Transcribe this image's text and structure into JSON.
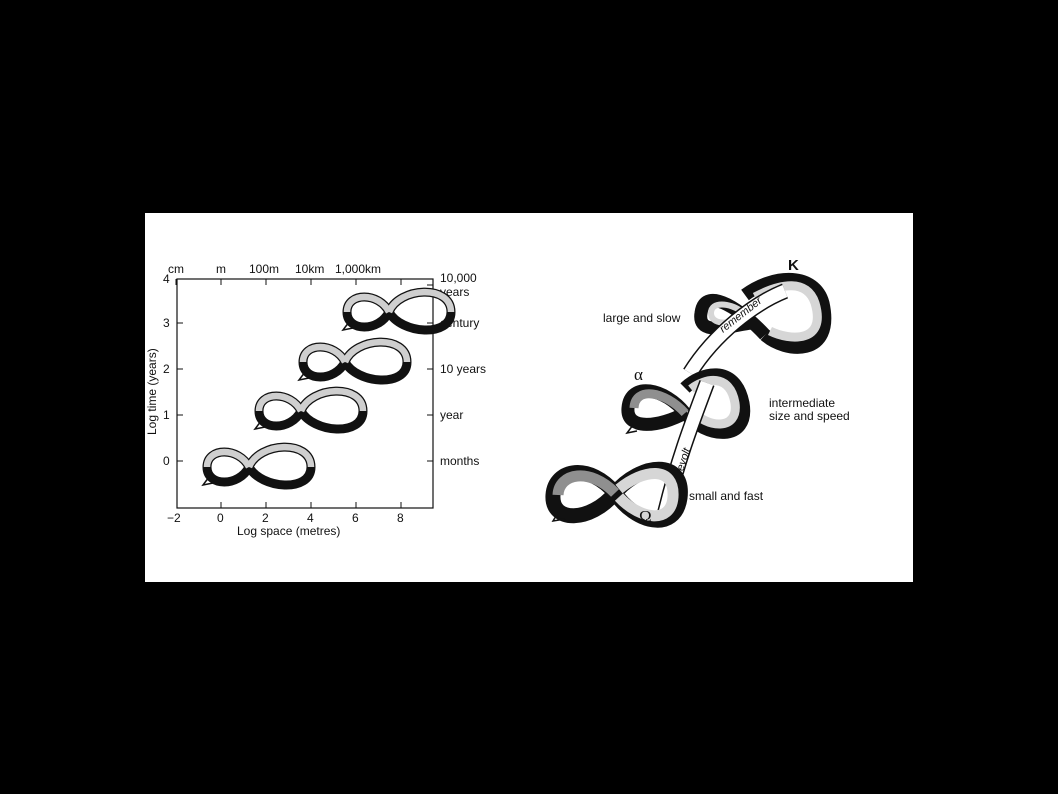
{
  "left_figure": {
    "top_axis_labels": [
      "cm",
      "m",
      "100m",
      "10km",
      "1,000km"
    ],
    "x_ticks": [
      "−2",
      "0",
      "2",
      "4",
      "6",
      "8"
    ],
    "y_ticks": [
      "0",
      "1",
      "2",
      "3",
      "4"
    ],
    "xlabel": "Log space (metres)",
    "ylabel": "Log time (years)",
    "right_axis": {
      "ten_thousand_line1": "10,000",
      "ten_thousand_line2": "years",
      "century": "century",
      "ten_years": "10 years",
      "year": "year",
      "months": "months"
    }
  },
  "right_figure": {
    "kappa": "K",
    "alpha": "α",
    "omega": "Ω",
    "large_slow": "large and slow",
    "intermediate_line1": "intermediate",
    "intermediate_line2": "size and speed",
    "small_fast": "small and fast",
    "remember": "remember",
    "revolt": "revolt"
  },
  "colors": {
    "background": "#000000",
    "panel": "#ffffff",
    "ink": "#111111",
    "light_band": "#d6d6d6",
    "mid_band": "#8f8f8f",
    "dark_band": "#1a1a1a"
  },
  "icons": [
    "adaptive-cycle-loop-icon",
    "arrow-head-icon"
  ]
}
